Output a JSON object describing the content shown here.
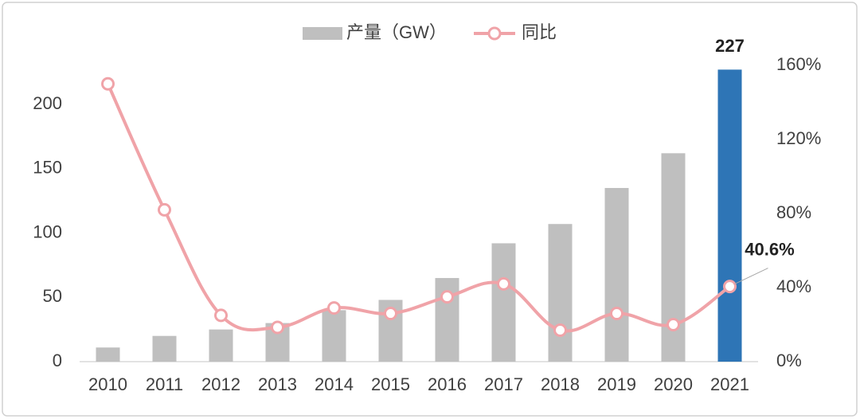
{
  "chart_data": {
    "type": "bar-line",
    "categories": [
      "2010",
      "2011",
      "2012",
      "2013",
      "2014",
      "2015",
      "2016",
      "2017",
      "2018",
      "2019",
      "2020",
      "2021"
    ],
    "series": [
      {
        "name": "产量（GW）",
        "type": "bar",
        "color": "#bfbfbf",
        "colors": [
          "#bfbfbf",
          "#bfbfbf",
          "#bfbfbf",
          "#bfbfbf",
          "#bfbfbf",
          "#bfbfbf",
          "#bfbfbf",
          "#bfbfbf",
          "#bfbfbf",
          "#bfbfbf",
          "#bfbfbf",
          "#2e75b6"
        ],
        "values": [
          11,
          20,
          25,
          30,
          40,
          48,
          65,
          92,
          107,
          135,
          162,
          227
        ],
        "value_labels": [
          null,
          null,
          null,
          null,
          null,
          null,
          null,
          null,
          null,
          null,
          null,
          "227"
        ]
      },
      {
        "name": "同比",
        "type": "line",
        "axis": "y2",
        "color": "#f0a3a8",
        "values": [
          150,
          82,
          25,
          18.5,
          29,
          26,
          35,
          42,
          17,
          26,
          20,
          40.6
        ],
        "value_labels": [
          null,
          null,
          null,
          null,
          null,
          null,
          null,
          null,
          null,
          null,
          null,
          "40.6%"
        ]
      }
    ],
    "ylim": [
      0,
      230
    ],
    "yticks": [
      0,
      50,
      100,
      150,
      200
    ],
    "y2lim": [
      0,
      160
    ],
    "y2ticks": [
      {
        "value": 0,
        "label": "0%"
      },
      {
        "value": 40,
        "label": "40%"
      },
      {
        "value": 80,
        "label": "80%"
      },
      {
        "value": 120,
        "label": "120%"
      },
      {
        "value": 160,
        "label": "160%"
      }
    ],
    "legend": "top"
  }
}
